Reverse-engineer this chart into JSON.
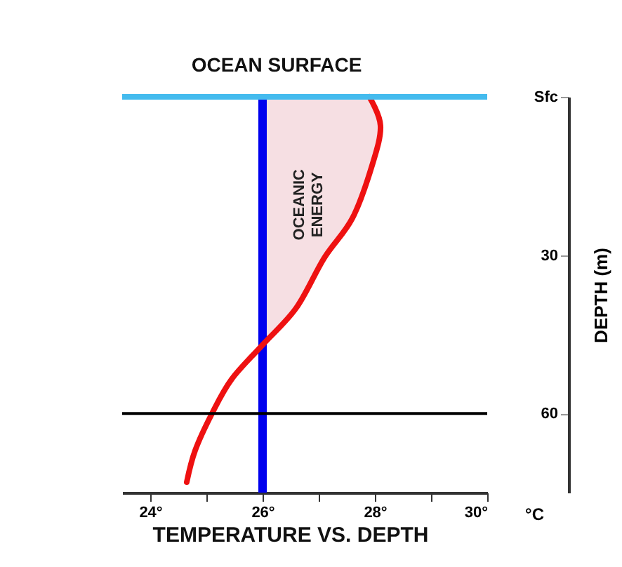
{
  "chart_data": {
    "type": "line",
    "orientation": "horizontal",
    "title": "TEMPERATURE VS. DEPTH",
    "xlabel": "°C",
    "ylabel": "DEPTH (m)",
    "xlim": [
      23.5,
      30
    ],
    "xticks": [
      {
        "value": 24,
        "label": "24°"
      },
      {
        "value": 25,
        "label": null
      },
      {
        "value": 26,
        "label": "26°"
      },
      {
        "value": 27,
        "label": null
      },
      {
        "value": 28,
        "label": "28°"
      },
      {
        "value": 29,
        "label": null
      },
      {
        "value": 30,
        "label": "30°"
      }
    ],
    "ylim": [
      75,
      0
    ],
    "yticks": [
      {
        "value": 0,
        "label": "Sfc"
      },
      30,
      60
    ],
    "grid": false,
    "series": [
      {
        "color": "#ee1111",
        "x": [
          0,
          5.5,
          13,
          23,
          30.5,
          40,
          47,
          53.5,
          60,
          67,
          73
        ],
        "values": [
          27.9,
          28.1,
          27.95,
          27.6,
          27.1,
          26.6,
          26.0,
          25.45,
          25.1,
          24.8,
          24.65
        ],
        "lower": [
          26,
          26,
          26,
          26,
          26,
          26,
          26,
          null,
          null,
          null,
          null
        ],
        "upper": [
          27.9,
          28.1,
          27.95,
          27.6,
          27.1,
          26.6,
          26.0,
          null,
          null,
          null,
          null
        ]
      }
    ],
    "annotations": [
      "OCEANIC ENERGY"
    ],
    "ref_lines": [
      {
        "axis": "y",
        "value": 0,
        "label": "OCEAN SURFACE",
        "color": "#44bbee"
      },
      {
        "axis": "x",
        "value": 26,
        "color": "#0000ee"
      },
      {
        "axis": "y",
        "value": 60,
        "color": "#000000"
      }
    ]
  }
}
